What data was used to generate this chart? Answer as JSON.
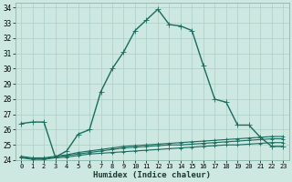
{
  "xlabel": "Humidex (Indice chaleur)",
  "background_color": "#cce8e0",
  "grid_color": "#aacfc7",
  "line_color": "#1a6b5e",
  "xlim": [
    -0.5,
    23.5
  ],
  "ylim": [
    24,
    34.3
  ],
  "xticks": [
    0,
    1,
    2,
    3,
    4,
    5,
    6,
    7,
    8,
    9,
    10,
    11,
    12,
    13,
    14,
    15,
    16,
    17,
    18,
    19,
    20,
    21,
    22,
    23
  ],
  "yticks": [
    24,
    25,
    26,
    27,
    28,
    29,
    30,
    31,
    32,
    33,
    34
  ],
  "series": [
    {
      "x": [
        0,
        1,
        2,
        3,
        4,
        5,
        6,
        7,
        8,
        9,
        10,
        11,
        12,
        13,
        14,
        15,
        16,
        17,
        18,
        19,
        20,
        21,
        22,
        23
      ],
      "y": [
        26.4,
        26.5,
        26.5,
        24.2,
        24.6,
        25.7,
        26.0,
        28.5,
        30.0,
        31.1,
        32.5,
        33.2,
        33.9,
        32.9,
        32.8,
        32.5,
        30.2,
        28.0,
        27.8,
        26.3,
        26.3,
        25.5,
        24.9,
        24.9
      ],
      "lw": 1.0,
      "ms": 2.5
    },
    {
      "x": [
        0,
        1,
        2,
        3,
        4,
        5,
        6,
        7,
        8,
        9,
        10,
        11,
        12,
        13,
        14,
        15,
        16,
        17,
        18,
        19,
        20,
        21,
        22,
        23
      ],
      "y": [
        24.25,
        24.15,
        24.15,
        24.25,
        24.35,
        24.5,
        24.6,
        24.7,
        24.8,
        24.9,
        24.95,
        25.0,
        25.05,
        25.1,
        25.15,
        25.2,
        25.25,
        25.3,
        25.35,
        25.4,
        25.45,
        25.5,
        25.55,
        25.55
      ],
      "lw": 0.8,
      "ms": 1.5
    },
    {
      "x": [
        0,
        1,
        2,
        3,
        4,
        5,
        6,
        7,
        8,
        9,
        10,
        11,
        12,
        13,
        14,
        15,
        16,
        17,
        18,
        19,
        20,
        21,
        22,
        23
      ],
      "y": [
        24.2,
        24.1,
        24.1,
        24.2,
        24.3,
        24.4,
        24.5,
        24.6,
        24.7,
        24.8,
        24.85,
        24.9,
        24.95,
        25.0,
        25.0,
        25.05,
        25.1,
        25.15,
        25.2,
        25.25,
        25.3,
        25.35,
        25.4,
        25.4
      ],
      "lw": 0.8,
      "ms": 1.5
    },
    {
      "x": [
        0,
        1,
        2,
        3,
        4,
        5,
        6,
        7,
        8,
        9,
        10,
        11,
        12,
        13,
        14,
        15,
        16,
        17,
        18,
        19,
        20,
        21,
        22,
        23
      ],
      "y": [
        24.15,
        24.05,
        24.05,
        24.15,
        24.2,
        24.3,
        24.4,
        24.45,
        24.5,
        24.55,
        24.6,
        24.65,
        24.7,
        24.75,
        24.8,
        24.85,
        24.9,
        24.95,
        25.0,
        25.0,
        25.05,
        25.1,
        25.15,
        25.15
      ],
      "lw": 0.8,
      "ms": 1.5
    }
  ]
}
